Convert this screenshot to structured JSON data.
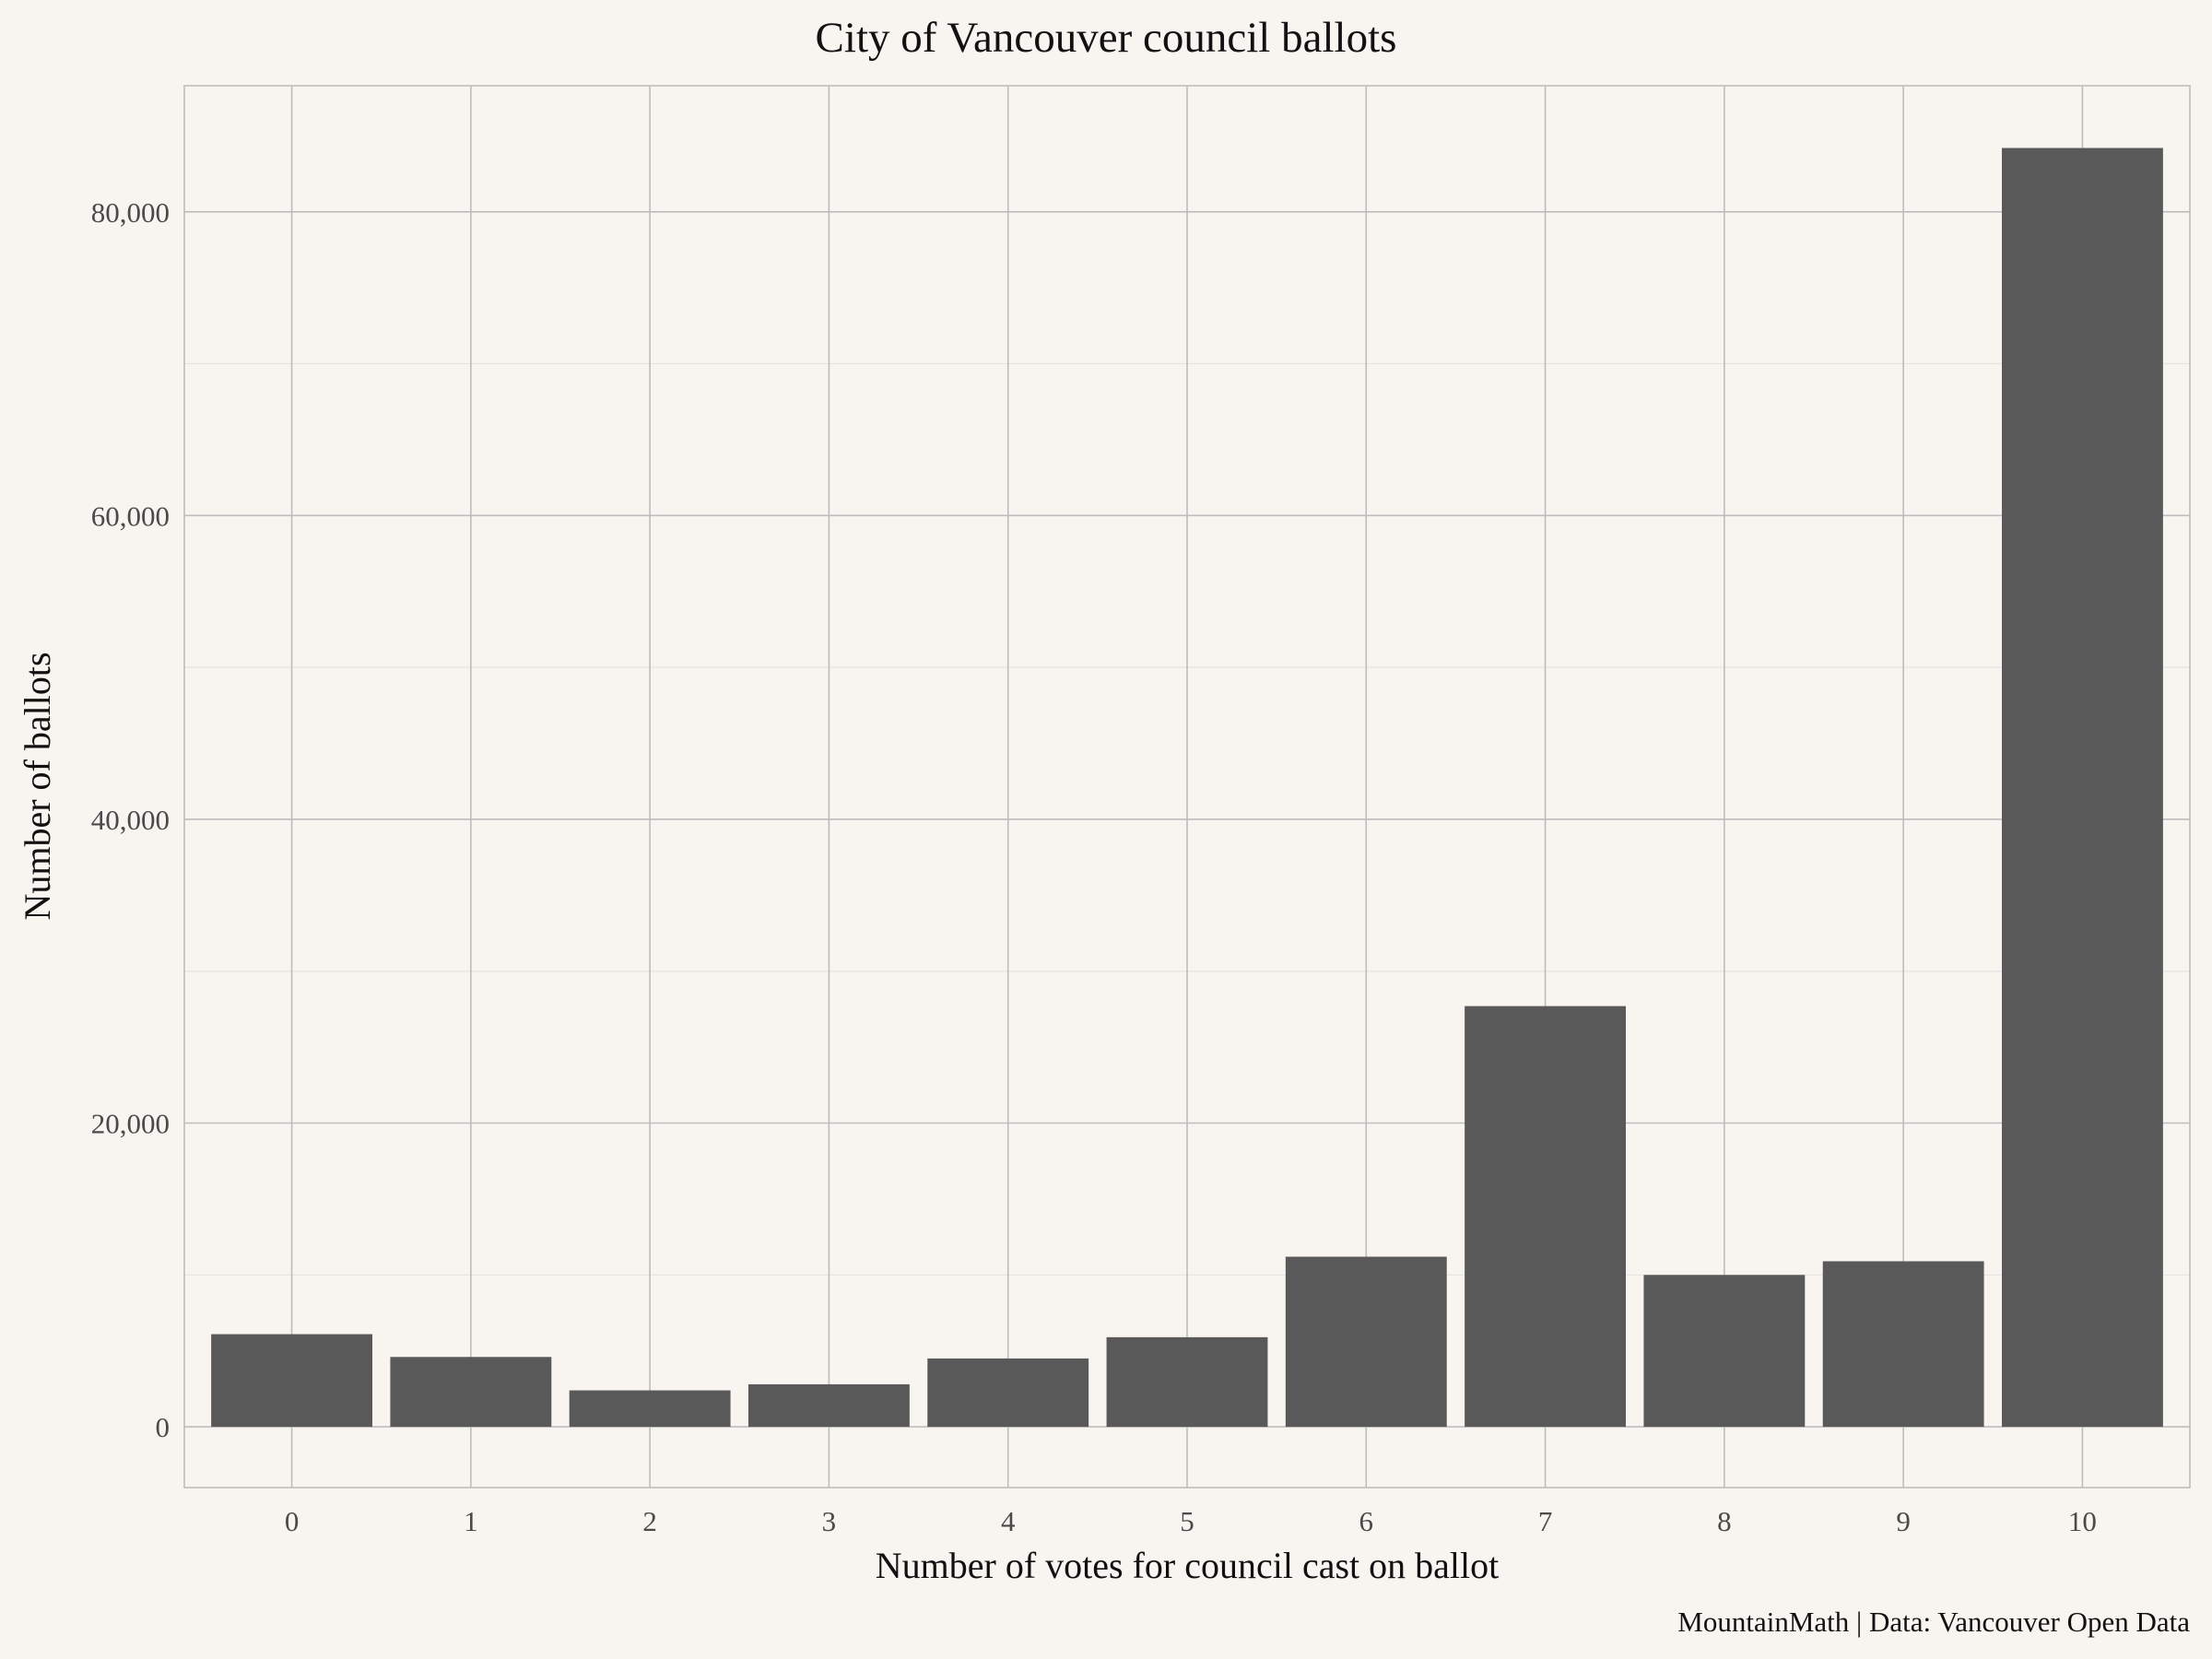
{
  "chart_data": {
    "type": "bar",
    "title": "City of Vancouver council ballots",
    "xlabel": "Number of votes for council cast on ballot",
    "ylabel": "Number of ballots",
    "caption": "MountainMath | Data: Vancouver Open Data",
    "categories": [
      "0",
      "1",
      "2",
      "3",
      "4",
      "5",
      "6",
      "7",
      "8",
      "9",
      "10"
    ],
    "values": [
      6100,
      4600,
      2400,
      2800,
      4500,
      5900,
      11200,
      27700,
      10000,
      10900,
      84200
    ],
    "ylim": [
      -4000,
      88300
    ],
    "yticks": [
      0,
      20000,
      40000,
      60000,
      80000
    ],
    "ytick_labels": [
      "0",
      "20,000",
      "40,000",
      "60,000",
      "80,000"
    ],
    "bar_color": "#595959",
    "background_color": "#f8f5f1",
    "grid": true
  }
}
